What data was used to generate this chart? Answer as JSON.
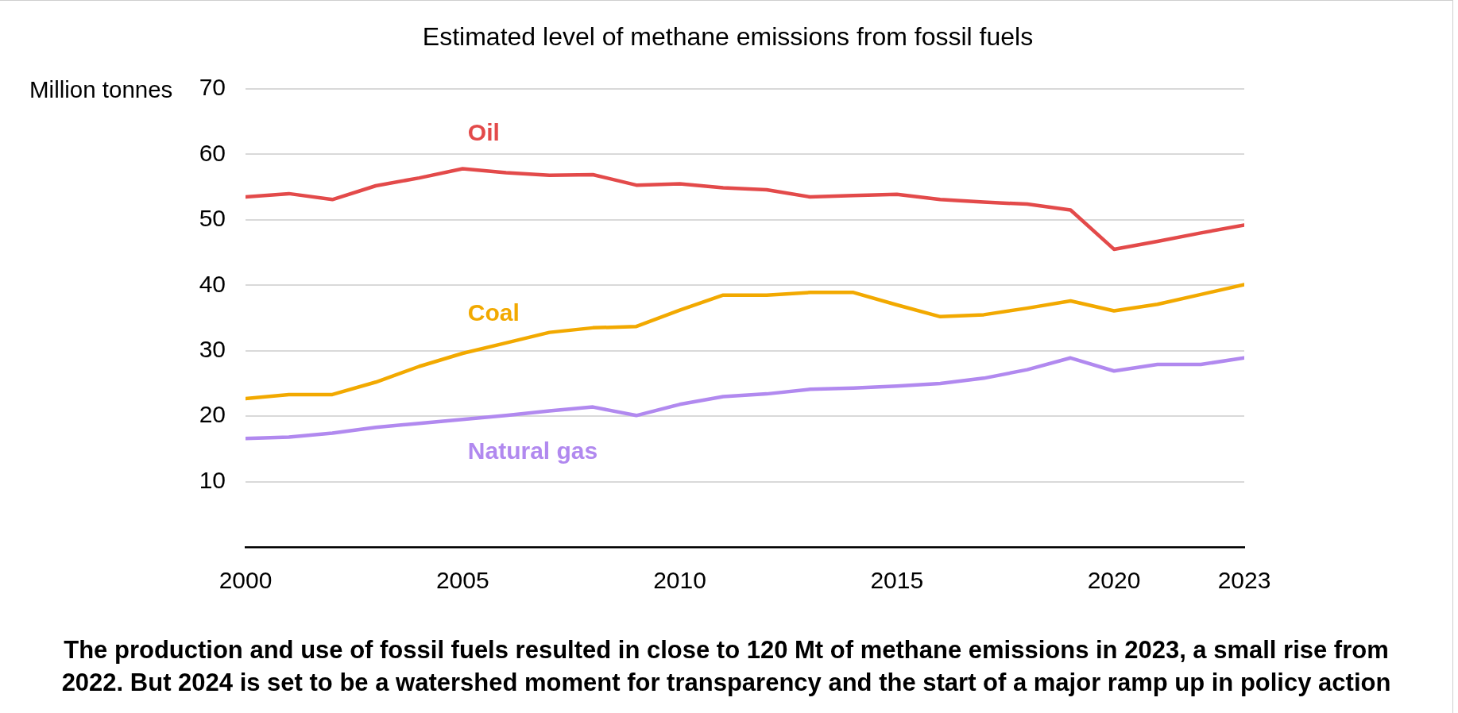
{
  "chart_data": {
    "type": "line",
    "title": "Estimated level of methane emissions from fossil fuels",
    "ylabel": "Million tonnes",
    "x": [
      2000,
      2001,
      2002,
      2003,
      2004,
      2005,
      2006,
      2007,
      2008,
      2009,
      2010,
      2011,
      2012,
      2013,
      2014,
      2015,
      2016,
      2017,
      2018,
      2019,
      2020,
      2021,
      2022,
      2023
    ],
    "series": [
      {
        "name": "Oil",
        "color": "#e34a4a",
        "values": [
          53.5,
          54.0,
          53.1,
          55.2,
          56.4,
          57.8,
          57.2,
          56.8,
          56.9,
          55.3,
          55.5,
          54.9,
          54.6,
          53.5,
          53.7,
          53.9,
          53.1,
          52.7,
          52.4,
          51.5,
          45.5,
          46.7,
          48.0,
          49.2
        ]
      },
      {
        "name": "Coal",
        "color": "#f2a900",
        "values": [
          22.7,
          23.3,
          23.3,
          25.2,
          27.6,
          29.6,
          31.2,
          32.8,
          33.5,
          33.7,
          36.2,
          38.5,
          38.5,
          38.9,
          38.9,
          37.0,
          35.2,
          35.5,
          36.5,
          37.6,
          36.1,
          37.1,
          38.6,
          40.1
        ]
      },
      {
        "name": "Natural gas",
        "color": "#b189ef",
        "values": [
          16.6,
          16.8,
          17.4,
          18.3,
          18.9,
          19.5,
          20.1,
          20.8,
          21.4,
          20.1,
          21.8,
          23.0,
          23.4,
          24.1,
          24.3,
          24.6,
          25.0,
          25.8,
          27.1,
          28.9,
          26.9,
          27.9,
          27.9,
          28.9
        ]
      }
    ],
    "xlim": [
      2000,
      2023
    ],
    "xticks": [
      2000,
      2005,
      2010,
      2015,
      2020,
      2023
    ],
    "ylim": [
      0,
      70
    ],
    "yticks": [
      10,
      20,
      30,
      40,
      50,
      60,
      70
    ],
    "grid": "y",
    "legend": false,
    "marker": "none",
    "line_style": "solid",
    "annotations": [
      "The production and use of fossil fuels resulted in close to 120 Mt of methane emissions in 2023, a small rise from 2022. But 2024 is set to be a watershed moment for transparency and the start of a major ramp up in policy action"
    ]
  }
}
